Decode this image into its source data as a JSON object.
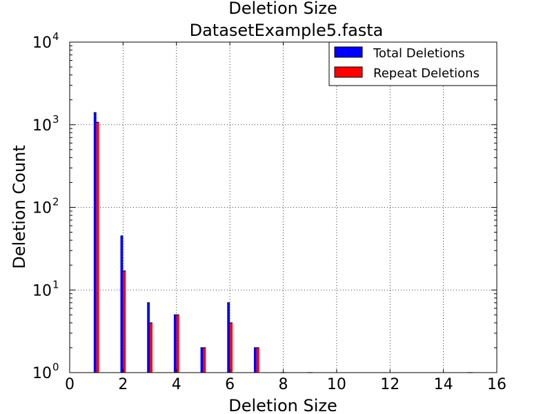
{
  "chart_data": {
    "type": "bar",
    "title": "Deletion Size",
    "subtitle": "DatasetExample5.fasta",
    "xlabel": "Deletion Size",
    "ylabel": "Deletion Count",
    "xlim": [
      0,
      16
    ],
    "ylim": [
      1,
      10000
    ],
    "yscale": "log",
    "grid": true,
    "legend_position": "top-right",
    "x_ticks": [
      "0",
      "2",
      "4",
      "6",
      "8",
      "10",
      "12",
      "14",
      "16"
    ],
    "y_ticks": [
      {
        "base": "10",
        "exp": "0",
        "value": 1
      },
      {
        "base": "10",
        "exp": "1",
        "value": 10
      },
      {
        "base": "10",
        "exp": "2",
        "value": 100
      },
      {
        "base": "10",
        "exp": "3",
        "value": 1000
      },
      {
        "base": "10",
        "exp": "4",
        "value": 10000
      }
    ],
    "series": [
      {
        "name": "Total Deletions",
        "color": "#0000ff",
        "points": [
          {
            "x": 1,
            "y": 1400
          },
          {
            "x": 2,
            "y": 45
          },
          {
            "x": 3,
            "y": 7
          },
          {
            "x": 4,
            "y": 5
          },
          {
            "x": 5,
            "y": 2
          },
          {
            "x": 6,
            "y": 7
          },
          {
            "x": 7,
            "y": 2
          },
          {
            "x": 8,
            "y": 1
          },
          {
            "x": 9,
            "y": 1
          },
          {
            "x": 15,
            "y": 1
          }
        ]
      },
      {
        "name": "Repeat Deletions",
        "color": "#ff0000",
        "points": [
          {
            "x": 1,
            "y": 1070
          },
          {
            "x": 2,
            "y": 17
          },
          {
            "x": 3,
            "y": 4
          },
          {
            "x": 4,
            "y": 5
          },
          {
            "x": 5,
            "y": 2
          },
          {
            "x": 6,
            "y": 4
          },
          {
            "x": 7,
            "y": 2
          },
          {
            "x": 8,
            "y": 1
          },
          {
            "x": 9,
            "y": 1
          },
          {
            "x": 15,
            "y": 1
          }
        ]
      }
    ]
  }
}
